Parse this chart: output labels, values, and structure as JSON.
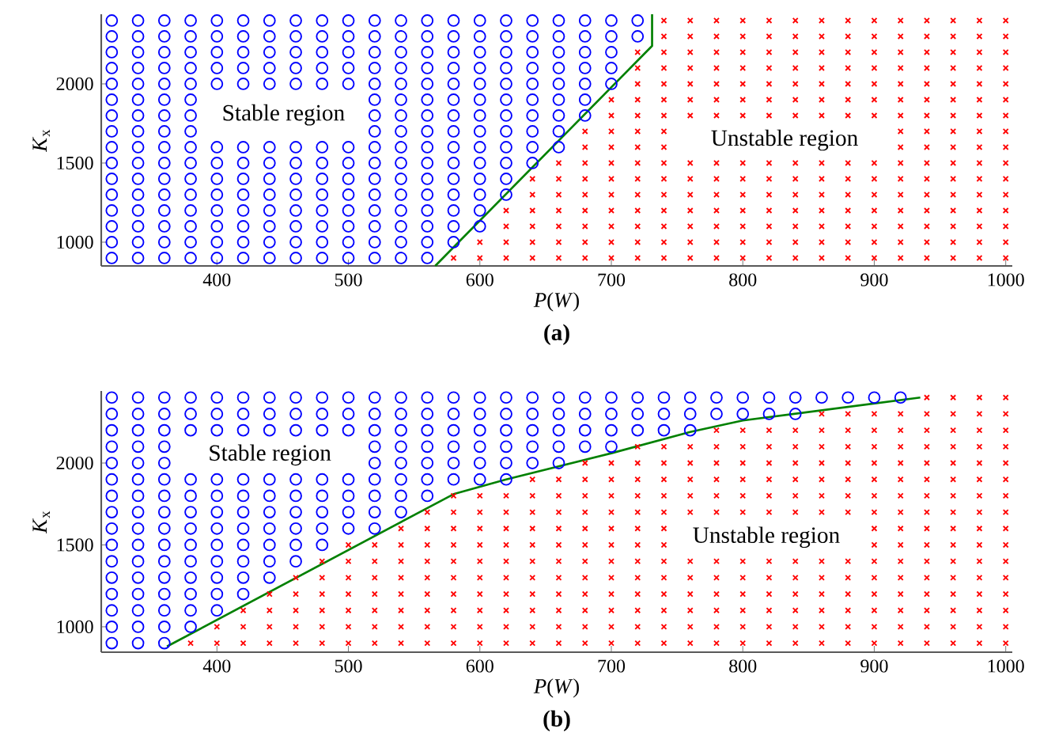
{
  "chart_data": [
    {
      "type": "scatter",
      "title": "(a)",
      "xlabel": "*P*(*W*)",
      "ylabel": "*K*$_{x}$",
      "xlim": [
        312,
        1005
      ],
      "ylim": [
        850,
        2440
      ],
      "xticks": [
        400,
        500,
        600,
        700,
        800,
        900,
        1000
      ],
      "yticks": [
        1000,
        1500,
        2000
      ],
      "annotations": [
        "Stable region",
        "Unstable region"
      ],
      "series": [
        {
          "type": "scatter",
          "marker": "circle",
          "color": "#0000ff",
          "x": [
            320,
            340,
            360,
            380,
            400,
            420,
            440,
            460,
            480,
            500,
            520,
            540,
            560,
            320,
            340,
            360,
            380,
            400,
            420,
            440,
            460,
            480,
            500,
            520,
            540,
            560,
            580,
            320,
            340,
            360,
            380,
            400,
            420,
            440,
            460,
            480,
            500,
            520,
            540,
            560,
            580,
            600,
            320,
            340,
            360,
            380,
            400,
            420,
            440,
            460,
            480,
            500,
            520,
            540,
            560,
            580,
            600,
            320,
            340,
            360,
            380,
            400,
            420,
            440,
            460,
            480,
            500,
            520,
            540,
            560,
            580,
            600,
            620,
            320,
            340,
            360,
            380,
            400,
            420,
            440,
            460,
            480,
            500,
            520,
            540,
            560,
            580,
            600,
            620,
            320,
            340,
            360,
            380,
            400,
            420,
            440,
            460,
            480,
            500,
            520,
            540,
            560,
            580,
            600,
            620,
            640,
            320,
            340,
            360,
            380,
            400,
            420,
            440,
            460,
            480,
            500,
            520,
            540,
            560,
            580,
            600,
            620,
            640,
            660,
            320,
            340,
            360,
            380,
            520,
            540,
            560,
            580,
            600,
            620,
            640,
            660,
            320,
            340,
            360,
            380,
            520,
            540,
            560,
            580,
            600,
            620,
            640,
            660,
            680,
            320,
            340,
            360,
            380,
            520,
            540,
            560,
            580,
            600,
            620,
            640,
            660,
            680,
            320,
            340,
            360,
            380,
            400,
            420,
            440,
            460,
            480,
            500,
            520,
            540,
            560,
            580,
            600,
            620,
            640,
            660,
            680,
            700,
            320,
            340,
            360,
            380,
            400,
            420,
            440,
            460,
            480,
            500,
            520,
            540,
            560,
            580,
            600,
            620,
            640,
            660,
            680,
            700,
            320,
            340,
            360,
            380,
            400,
            420,
            440,
            460,
            480,
            500,
            520,
            540,
            560,
            580,
            600,
            620,
            640,
            660,
            680,
            700,
            320,
            340,
            360,
            380,
            400,
            420,
            440,
            460,
            480,
            500,
            520,
            540,
            560,
            580,
            600,
            620,
            640,
            660,
            680,
            700,
            720,
            320,
            340,
            360,
            380,
            400,
            420,
            440,
            460,
            480,
            500,
            520,
            540,
            560,
            580,
            600,
            620,
            640,
            660,
            680,
            700,
            720
          ],
          "values": [
            900,
            900,
            900,
            900,
            900,
            900,
            900,
            900,
            900,
            900,
            900,
            900,
            900,
            1000,
            1000,
            1000,
            1000,
            1000,
            1000,
            1000,
            1000,
            1000,
            1000,
            1000,
            1000,
            1000,
            1000,
            1100,
            1100,
            1100,
            1100,
            1100,
            1100,
            1100,
            1100,
            1100,
            1100,
            1100,
            1100,
            1100,
            1100,
            1100,
            1200,
            1200,
            1200,
            1200,
            1200,
            1200,
            1200,
            1200,
            1200,
            1200,
            1200,
            1200,
            1200,
            1200,
            1200,
            1300,
            1300,
            1300,
            1300,
            1300,
            1300,
            1300,
            1300,
            1300,
            1300,
            1300,
            1300,
            1300,
            1300,
            1300,
            1300,
            1400,
            1400,
            1400,
            1400,
            1400,
            1400,
            1400,
            1400,
            1400,
            1400,
            1400,
            1400,
            1400,
            1400,
            1400,
            1400,
            1500,
            1500,
            1500,
            1500,
            1500,
            1500,
            1500,
            1500,
            1500,
            1500,
            1500,
            1500,
            1500,
            1500,
            1500,
            1500,
            1500,
            1600,
            1600,
            1600,
            1600,
            1600,
            1600,
            1600,
            1600,
            1600,
            1600,
            1600,
            1600,
            1600,
            1600,
            1600,
            1600,
            1600,
            1600,
            1700,
            1700,
            1700,
            1700,
            1700,
            1700,
            1700,
            1700,
            1700,
            1700,
            1700,
            1700,
            1800,
            1800,
            1800,
            1800,
            1800,
            1800,
            1800,
            1800,
            1800,
            1800,
            1800,
            1800,
            1800,
            1900,
            1900,
            1900,
            1900,
            1900,
            1900,
            1900,
            1900,
            1900,
            1900,
            1900,
            1900,
            1900,
            2000,
            2000,
            2000,
            2000,
            2000,
            2000,
            2000,
            2000,
            2000,
            2000,
            2000,
            2000,
            2000,
            2000,
            2000,
            2000,
            2000,
            2000,
            2000,
            2000,
            2100,
            2100,
            2100,
            2100,
            2100,
            2100,
            2100,
            2100,
            2100,
            2100,
            2100,
            2100,
            2100,
            2100,
            2100,
            2100,
            2100,
            2100,
            2100,
            2100,
            2200,
            2200,
            2200,
            2200,
            2200,
            2200,
            2200,
            2200,
            2200,
            2200,
            2200,
            2200,
            2200,
            2200,
            2200,
            2200,
            2200,
            2200,
            2200,
            2200,
            2300,
            2300,
            2300,
            2300,
            2300,
            2300,
            2300,
            2300,
            2300,
            2300,
            2300,
            2300,
            2300,
            2300,
            2300,
            2300,
            2300,
            2300,
            2300,
            2300,
            2300,
            2400,
            2400,
            2400,
            2400,
            2400,
            2400,
            2400,
            2400,
            2400,
            2400,
            2400,
            2400,
            2400,
            2400,
            2400,
            2400,
            2400,
            2400,
            2400,
            2400,
            2400
          ]
        },
        {
          "type": "scatter",
          "marker": "cross",
          "color": "#ff0000",
          "x": [
            580,
            600,
            620,
            640,
            660,
            680,
            700,
            720,
            740,
            760,
            780,
            800,
            820,
            840,
            860,
            880,
            900,
            920,
            940,
            960,
            980,
            1000,
            600,
            620,
            640,
            660,
            680,
            700,
            720,
            740,
            760,
            780,
            800,
            820,
            840,
            860,
            880,
            900,
            920,
            940,
            960,
            980,
            1000,
            620,
            640,
            660,
            680,
            700,
            720,
            740,
            760,
            780,
            800,
            820,
            840,
            860,
            880,
            900,
            920,
            940,
            960,
            980,
            1000,
            620,
            640,
            660,
            680,
            700,
            720,
            740,
            760,
            780,
            800,
            820,
            840,
            860,
            880,
            900,
            920,
            940,
            960,
            980,
            1000,
            640,
            660,
            680,
            700,
            720,
            740,
            760,
            780,
            800,
            820,
            840,
            860,
            880,
            900,
            920,
            940,
            960,
            980,
            1000,
            640,
            660,
            680,
            700,
            720,
            740,
            760,
            780,
            800,
            820,
            840,
            860,
            880,
            900,
            920,
            940,
            960,
            980,
            1000,
            660,
            680,
            700,
            720,
            740,
            760,
            780,
            800,
            820,
            840,
            860,
            880,
            900,
            920,
            940,
            960,
            980,
            1000,
            680,
            700,
            720,
            740,
            920,
            940,
            960,
            980,
            1000,
            680,
            700,
            720,
            740,
            920,
            940,
            960,
            980,
            1000,
            700,
            720,
            740,
            760,
            780,
            800,
            820,
            840,
            860,
            880,
            900,
            920,
            940,
            960,
            980,
            1000,
            700,
            720,
            740,
            760,
            780,
            800,
            820,
            840,
            860,
            880,
            900,
            920,
            940,
            960,
            980,
            1000,
            720,
            740,
            760,
            780,
            800,
            820,
            840,
            860,
            880,
            900,
            920,
            940,
            960,
            980,
            1000,
            720,
            740,
            760,
            780,
            800,
            820,
            840,
            860,
            880,
            900,
            920,
            940,
            960,
            980,
            1000,
            720,
            740,
            760,
            780,
            800,
            820,
            840,
            860,
            880,
            900,
            920,
            940,
            960,
            980,
            1000,
            740,
            760,
            780,
            800,
            820,
            840,
            860,
            880,
            900,
            920,
            940,
            960,
            980,
            1000,
            740,
            760,
            780,
            800,
            820,
            840,
            860,
            880,
            900,
            920,
            940,
            960,
            980,
            1000
          ],
          "values": [
            900,
            900,
            900,
            900,
            900,
            900,
            900,
            900,
            900,
            900,
            900,
            900,
            900,
            900,
            900,
            900,
            900,
            900,
            900,
            900,
            900,
            900,
            1000,
            1000,
            1000,
            1000,
            1000,
            1000,
            1000,
            1000,
            1000,
            1000,
            1000,
            1000,
            1000,
            1000,
            1000,
            1000,
            1000,
            1000,
            1000,
            1000,
            1000,
            1100,
            1100,
            1100,
            1100,
            1100,
            1100,
            1100,
            1100,
            1100,
            1100,
            1100,
            1100,
            1100,
            1100,
            1100,
            1100,
            1100,
            1100,
            1100,
            1100,
            1200,
            1200,
            1200,
            1200,
            1200,
            1200,
            1200,
            1200,
            1200,
            1200,
            1200,
            1200,
            1200,
            1200,
            1200,
            1200,
            1200,
            1200,
            1200,
            1200,
            1300,
            1300,
            1300,
            1300,
            1300,
            1300,
            1300,
            1300,
            1300,
            1300,
            1300,
            1300,
            1300,
            1300,
            1300,
            1300,
            1300,
            1300,
            1300,
            1400,
            1400,
            1400,
            1400,
            1400,
            1400,
            1400,
            1400,
            1400,
            1400,
            1400,
            1400,
            1400,
            1400,
            1400,
            1400,
            1400,
            1400,
            1400,
            1500,
            1500,
            1500,
            1500,
            1500,
            1500,
            1500,
            1500,
            1500,
            1500,
            1500,
            1500,
            1500,
            1500,
            1500,
            1500,
            1500,
            1500,
            1600,
            1600,
            1600,
            1600,
            1600,
            1600,
            1600,
            1600,
            1600,
            1700,
            1700,
            1700,
            1700,
            1700,
            1700,
            1700,
            1700,
            1700,
            1800,
            1800,
            1800,
            1800,
            1800,
            1800,
            1800,
            1800,
            1800,
            1800,
            1800,
            1800,
            1800,
            1800,
            1800,
            1800,
            1900,
            1900,
            1900,
            1900,
            1900,
            1900,
            1900,
            1900,
            1900,
            1900,
            1900,
            1900,
            1900,
            1900,
            1900,
            1900,
            2000,
            2000,
            2000,
            2000,
            2000,
            2000,
            2000,
            2000,
            2000,
            2000,
            2000,
            2000,
            2000,
            2000,
            2000,
            2100,
            2100,
            2100,
            2100,
            2100,
            2100,
            2100,
            2100,
            2100,
            2100,
            2100,
            2100,
            2100,
            2100,
            2100,
            2200,
            2200,
            2200,
            2200,
            2200,
            2200,
            2200,
            2200,
            2200,
            2200,
            2200,
            2200,
            2200,
            2200,
            2200,
            2300,
            2300,
            2300,
            2300,
            2300,
            2300,
            2300,
            2300,
            2300,
            2300,
            2300,
            2300,
            2300,
            2300,
            2400,
            2400,
            2400,
            2400,
            2400,
            2400,
            2400,
            2400,
            2400,
            2400,
            2400,
            2400,
            2400,
            2400
          ]
        },
        {
          "type": "line",
          "marker": "none",
          "line_style": "solid",
          "color": "#008000",
          "x": [
            566,
            731,
            731
          ],
          "values": [
            850,
            2240,
            2440
          ]
        }
      ]
    },
    {
      "type": "scatter",
      "title": "(b)",
      "xlabel": "*P*(*W*)",
      "ylabel": "*K*$_{x}$",
      "xlim": [
        312,
        1005
      ],
      "ylim": [
        845,
        2440
      ],
      "xticks": [
        400,
        500,
        600,
        700,
        800,
        900,
        1000
      ],
      "yticks": [
        1000,
        1500,
        2000
      ],
      "annotations": [
        "Stable region",
        "Unstable region"
      ],
      "series": [
        {
          "type": "scatter",
          "marker": "circle",
          "color": "#0000ff",
          "x": [
            320,
            340,
            360,
            320,
            340,
            360,
            380,
            320,
            340,
            360,
            380,
            400,
            320,
            340,
            360,
            380,
            400,
            420,
            320,
            340,
            360,
            380,
            400,
            420,
            440,
            320,
            340,
            360,
            380,
            400,
            420,
            440,
            460,
            320,
            340,
            360,
            380,
            400,
            420,
            440,
            460,
            480,
            320,
            340,
            360,
            380,
            400,
            420,
            440,
            460,
            480,
            500,
            520,
            320,
            340,
            360,
            380,
            400,
            420,
            440,
            460,
            480,
            500,
            520,
            540,
            320,
            340,
            360,
            380,
            400,
            420,
            440,
            460,
            480,
            500,
            520,
            540,
            560,
            320,
            340,
            360,
            380,
            400,
            420,
            440,
            460,
            480,
            500,
            520,
            540,
            560,
            580,
            600,
            620,
            320,
            340,
            360,
            520,
            540,
            560,
            580,
            600,
            620,
            640,
            660,
            320,
            340,
            360,
            520,
            540,
            560,
            580,
            600,
            620,
            640,
            660,
            680,
            700,
            320,
            340,
            360,
            380,
            400,
            420,
            440,
            460,
            480,
            500,
            520,
            540,
            560,
            580,
            600,
            620,
            640,
            660,
            680,
            700,
            720,
            740,
            760,
            320,
            340,
            360,
            380,
            400,
            420,
            440,
            460,
            480,
            500,
            520,
            540,
            560,
            580,
            600,
            620,
            640,
            660,
            680,
            700,
            720,
            740,
            760,
            780,
            800,
            820,
            840,
            320,
            340,
            360,
            380,
            400,
            420,
            440,
            460,
            480,
            500,
            520,
            540,
            560,
            580,
            600,
            620,
            640,
            660,
            680,
            700,
            720,
            740,
            760,
            780,
            800,
            820,
            840,
            860,
            880,
            900,
            920
          ],
          "values": [
            900,
            900,
            900,
            1000,
            1000,
            1000,
            1000,
            1100,
            1100,
            1100,
            1100,
            1100,
            1200,
            1200,
            1200,
            1200,
            1200,
            1200,
            1300,
            1300,
            1300,
            1300,
            1300,
            1300,
            1300,
            1400,
            1400,
            1400,
            1400,
            1400,
            1400,
            1400,
            1400,
            1500,
            1500,
            1500,
            1500,
            1500,
            1500,
            1500,
            1500,
            1500,
            1600,
            1600,
            1600,
            1600,
            1600,
            1600,
            1600,
            1600,
            1600,
            1600,
            1600,
            1700,
            1700,
            1700,
            1700,
            1700,
            1700,
            1700,
            1700,
            1700,
            1700,
            1700,
            1700,
            1800,
            1800,
            1800,
            1800,
            1800,
            1800,
            1800,
            1800,
            1800,
            1800,
            1800,
            1800,
            1800,
            1900,
            1900,
            1900,
            1900,
            1900,
            1900,
            1900,
            1900,
            1900,
            1900,
            1900,
            1900,
            1900,
            1900,
            1900,
            1900,
            2000,
            2000,
            2000,
            2000,
            2000,
            2000,
            2000,
            2000,
            2000,
            2000,
            2000,
            2100,
            2100,
            2100,
            2100,
            2100,
            2100,
            2100,
            2100,
            2100,
            2100,
            2100,
            2100,
            2100,
            2200,
            2200,
            2200,
            2200,
            2200,
            2200,
            2200,
            2200,
            2200,
            2200,
            2200,
            2200,
            2200,
            2200,
            2200,
            2200,
            2200,
            2200,
            2200,
            2200,
            2200,
            2200,
            2200,
            2300,
            2300,
            2300,
            2300,
            2300,
            2300,
            2300,
            2300,
            2300,
            2300,
            2300,
            2300,
            2300,
            2300,
            2300,
            2300,
            2300,
            2300,
            2300,
            2300,
            2300,
            2300,
            2300,
            2300,
            2300,
            2300,
            2300,
            2400,
            2400,
            2400,
            2400,
            2400,
            2400,
            2400,
            2400,
            2400,
            2400,
            2400,
            2400,
            2400,
            2400,
            2400,
            2400,
            2400,
            2400,
            2400,
            2400,
            2400,
            2400,
            2400,
            2400,
            2400,
            2400,
            2400,
            2400,
            2400,
            2400,
            2400
          ]
        },
        {
          "type": "scatter",
          "marker": "cross",
          "color": "#ff0000",
          "x": [
            380,
            400,
            420,
            440,
            460,
            480,
            500,
            520,
            540,
            560,
            580,
            600,
            620,
            640,
            660,
            680,
            700,
            720,
            740,
            760,
            780,
            800,
            820,
            840,
            860,
            880,
            900,
            920,
            940,
            960,
            980,
            1000,
            400,
            420,
            440,
            460,
            480,
            500,
            520,
            540,
            560,
            580,
            600,
            620,
            640,
            660,
            680,
            700,
            720,
            740,
            760,
            780,
            800,
            820,
            840,
            860,
            880,
            900,
            920,
            940,
            960,
            980,
            1000,
            420,
            440,
            460,
            480,
            500,
            520,
            540,
            560,
            580,
            600,
            620,
            640,
            660,
            680,
            700,
            720,
            740,
            760,
            780,
            800,
            820,
            840,
            860,
            880,
            900,
            920,
            940,
            960,
            980,
            1000,
            440,
            460,
            480,
            500,
            520,
            540,
            560,
            580,
            600,
            620,
            640,
            660,
            680,
            700,
            720,
            740,
            760,
            780,
            800,
            820,
            840,
            860,
            880,
            900,
            920,
            940,
            960,
            980,
            1000,
            460,
            480,
            500,
            520,
            540,
            560,
            580,
            600,
            620,
            640,
            660,
            680,
            700,
            720,
            740,
            760,
            780,
            800,
            820,
            840,
            860,
            880,
            900,
            920,
            940,
            960,
            980,
            1000,
            480,
            500,
            520,
            540,
            560,
            580,
            600,
            620,
            640,
            660,
            680,
            700,
            720,
            740,
            760,
            780,
            800,
            820,
            840,
            860,
            880,
            900,
            920,
            940,
            960,
            980,
            1000,
            500,
            520,
            540,
            560,
            580,
            600,
            620,
            640,
            660,
            680,
            700,
            720,
            740,
            900,
            920,
            940,
            960,
            980,
            1000,
            540,
            560,
            580,
            600,
            620,
            640,
            660,
            680,
            700,
            720,
            740,
            900,
            920,
            940,
            960,
            980,
            1000,
            560,
            580,
            600,
            620,
            640,
            660,
            680,
            700,
            720,
            740,
            760,
            780,
            800,
            820,
            840,
            860,
            880,
            900,
            920,
            940,
            960,
            980,
            1000,
            580,
            600,
            620,
            640,
            660,
            680,
            700,
            720,
            740,
            760,
            780,
            800,
            820,
            840,
            860,
            880,
            900,
            920,
            940,
            960,
            980,
            1000,
            640,
            660,
            680,
            700,
            720,
            740,
            760,
            780,
            800,
            820,
            840,
            860,
            880,
            900,
            920,
            940,
            960,
            980,
            1000,
            680,
            700,
            720,
            740,
            760,
            780,
            800,
            820,
            840,
            860,
            880,
            900,
            920,
            940,
            960,
            980,
            1000,
            720,
            740,
            760,
            780,
            800,
            820,
            840,
            860,
            880,
            900,
            920,
            940,
            960,
            980,
            1000,
            780,
            800,
            820,
            840,
            860,
            880,
            900,
            920,
            940,
            960,
            980,
            1000,
            860,
            880,
            900,
            920,
            940,
            960,
            980,
            1000,
            940,
            960,
            980,
            1000
          ],
          "values": [
            900,
            900,
            900,
            900,
            900,
            900,
            900,
            900,
            900,
            900,
            900,
            900,
            900,
            900,
            900,
            900,
            900,
            900,
            900,
            900,
            900,
            900,
            900,
            900,
            900,
            900,
            900,
            900,
            900,
            900,
            900,
            900,
            1000,
            1000,
            1000,
            1000,
            1000,
            1000,
            1000,
            1000,
            1000,
            1000,
            1000,
            1000,
            1000,
            1000,
            1000,
            1000,
            1000,
            1000,
            1000,
            1000,
            1000,
            1000,
            1000,
            1000,
            1000,
            1000,
            1000,
            1000,
            1000,
            1000,
            1000,
            1100,
            1100,
            1100,
            1100,
            1100,
            1100,
            1100,
            1100,
            1100,
            1100,
            1100,
            1100,
            1100,
            1100,
            1100,
            1100,
            1100,
            1100,
            1100,
            1100,
            1100,
            1100,
            1100,
            1100,
            1100,
            1100,
            1100,
            1100,
            1100,
            1100,
            1200,
            1200,
            1200,
            1200,
            1200,
            1200,
            1200,
            1200,
            1200,
            1200,
            1200,
            1200,
            1200,
            1200,
            1200,
            1200,
            1200,
            1200,
            1200,
            1200,
            1200,
            1200,
            1200,
            1200,
            1200,
            1200,
            1200,
            1200,
            1200,
            1300,
            1300,
            1300,
            1300,
            1300,
            1300,
            1300,
            1300,
            1300,
            1300,
            1300,
            1300,
            1300,
            1300,
            1300,
            1300,
            1300,
            1300,
            1300,
            1300,
            1300,
            1300,
            1300,
            1300,
            1300,
            1300,
            1300,
            1300,
            1400,
            1400,
            1400,
            1400,
            1400,
            1400,
            1400,
            1400,
            1400,
            1400,
            1400,
            1400,
            1400,
            1400,
            1400,
            1400,
            1400,
            1400,
            1400,
            1400,
            1400,
            1400,
            1400,
            1400,
            1400,
            1400,
            1400,
            1500,
            1500,
            1500,
            1500,
            1500,
            1500,
            1500,
            1500,
            1500,
            1500,
            1500,
            1500,
            1500,
            1500,
            1500,
            1500,
            1500,
            1500,
            1500,
            1600,
            1600,
            1600,
            1600,
            1600,
            1600,
            1600,
            1600,
            1600,
            1600,
            1600,
            1600,
            1600,
            1600,
            1600,
            1600,
            1600,
            1700,
            1700,
            1700,
            1700,
            1700,
            1700,
            1700,
            1700,
            1700,
            1700,
            1700,
            1700,
            1700,
            1700,
            1700,
            1700,
            1700,
            1700,
            1700,
            1700,
            1700,
            1700,
            1700,
            1800,
            1800,
            1800,
            1800,
            1800,
            1800,
            1800,
            1800,
            1800,
            1800,
            1800,
            1800,
            1800,
            1800,
            1800,
            1800,
            1800,
            1800,
            1800,
            1800,
            1800,
            1800,
            1900,
            1900,
            1900,
            1900,
            1900,
            1900,
            1900,
            1900,
            1900,
            1900,
            1900,
            1900,
            1900,
            1900,
            1900,
            1900,
            1900,
            1900,
            1900,
            2000,
            2000,
            2000,
            2000,
            2000,
            2000,
            2000,
            2000,
            2000,
            2000,
            2000,
            2000,
            2000,
            2000,
            2000,
            2000,
            2000,
            2100,
            2100,
            2100,
            2100,
            2100,
            2100,
            2100,
            2100,
            2100,
            2100,
            2100,
            2100,
            2100,
            2100,
            2100,
            2200,
            2200,
            2200,
            2200,
            2200,
            2200,
            2200,
            2200,
            2200,
            2200,
            2200,
            2200,
            2300,
            2300,
            2300,
            2300,
            2300,
            2300,
            2300,
            2300,
            2400,
            2400,
            2400,
            2400
          ]
        },
        {
          "type": "line",
          "marker": "none",
          "line_style": "solid",
          "color": "#008000",
          "x": [
            362,
            580,
            620,
            700,
            760,
            800,
            935
          ],
          "values": [
            880,
            1810,
            1900,
            2060,
            2190,
            2260,
            2400
          ]
        }
      ]
    }
  ]
}
